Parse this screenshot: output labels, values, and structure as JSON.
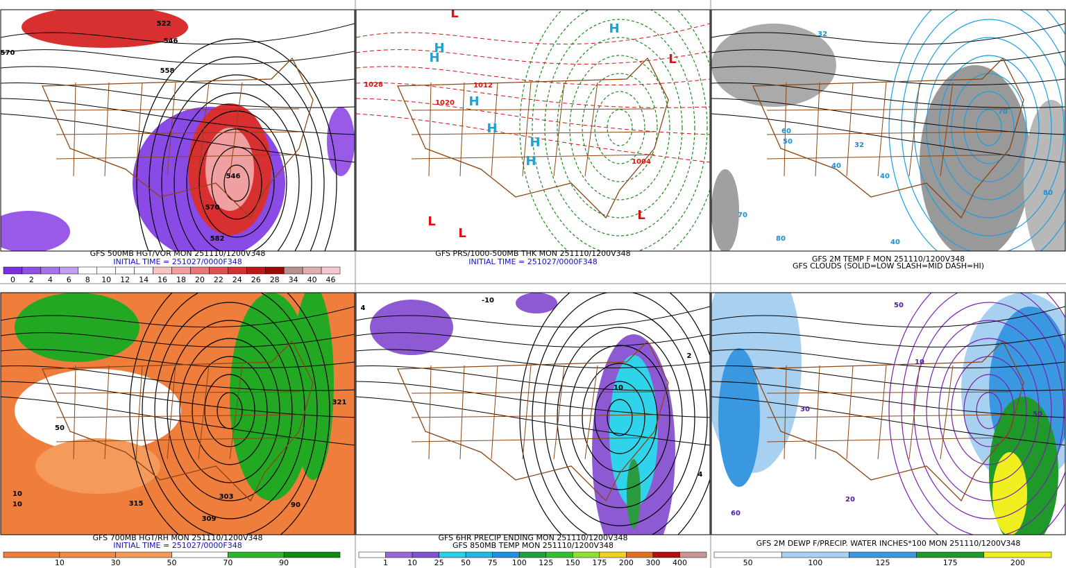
{
  "panels": [
    {
      "captions": [
        "GFS 500MB HGT/VOR MON 251110/1200V348",
        "INITIAL TIME = 251027/0000F348"
      ],
      "map_labels": [
        "570",
        "558",
        "546",
        "546",
        "570",
        "582",
        "522"
      ],
      "colorbar": {
        "colors": [
          "#7b2fe0",
          "#9050e6",
          "#a673ea",
          "#c29ef0",
          "#ffffff",
          "#ffffff",
          "#ffffff",
          "#ffffff",
          "#f7c4c4",
          "#f0a0a0",
          "#e87878",
          "#e05050",
          "#d83030",
          "#c01818",
          "#a00808",
          "#b89090",
          "#e0b0b0",
          "#f4c8d0"
        ],
        "labels": [
          "0",
          "2",
          "4",
          "6",
          "8",
          "10",
          "12",
          "14",
          "16",
          "18",
          "20",
          "22",
          "24",
          "26",
          "28",
          "34",
          "40",
          "46"
        ]
      }
    },
    {
      "captions": [
        "GFS PRS/1000-500MB THK MON 251110/1200V348",
        "INITIAL TIME = 251027/0000F348"
      ],
      "map_labels": [
        "H",
        "H",
        "H",
        "H",
        "H",
        "H",
        "H",
        "L",
        "L",
        "L",
        "L",
        "L",
        "1028",
        "1020",
        "1012",
        "1004"
      ],
      "colorbar": null
    },
    {
      "captions": [
        "GFS 2M TEMP F MON 251110/1200V348",
        "GFS CLOUDS (SOLID=LOW SLASH=MID DASH=HI)"
      ],
      "map_labels": [
        "32",
        "32",
        "40",
        "40",
        "40",
        "50",
        "60",
        "70",
        "70",
        "80",
        "80"
      ],
      "colorbar": null
    },
    {
      "captions": [
        "GFS 700MB HGT/RH MON 251110/1200V348",
        "INITIAL TIME = 251027/0000F348"
      ],
      "map_labels": [
        "309",
        "303",
        "315",
        "321",
        "50",
        "10",
        "10",
        "90"
      ],
      "colorbar": {
        "colors": [
          "#ef7d3c",
          "#f18a46",
          "#f49a5a",
          "#ffffff",
          "#2fb52f",
          "#138a13"
        ],
        "labels": [
          "10",
          "30",
          "50",
          "70",
          "90"
        ]
      }
    },
    {
      "captions": [
        "GFS 6HR PRECIP ENDING MON 251110/1200V348",
        "GFS 850MB TEMP MON 251110/1200V348"
      ],
      "map_labels": [
        "4",
        "4",
        "2",
        "-10",
        "10"
      ],
      "colorbar": {
        "colors": [
          "#ffffff",
          "#9a66d8",
          "#7e54d0",
          "#29d0e8",
          "#20b8e0",
          "#2090e0",
          "#20a040",
          "#30c030",
          "#90e030",
          "#f0d020",
          "#e07020",
          "#b01010",
          "#c89898"
        ],
        "labels": [
          "1",
          "10",
          "25",
          "50",
          "75",
          "100",
          "125",
          "150",
          "175",
          "200",
          "300",
          "400"
        ]
      }
    },
    {
      "captions": [
        "GFS 2M DEWP F/PRECIP. WATER INCHES*100 MON 251110/1200V348"
      ],
      "map_labels": [
        "50",
        "50",
        "30",
        "20",
        "10",
        "60"
      ],
      "colorbar": {
        "colors": [
          "#ffffff",
          "#a8d0f0",
          "#3a98e0",
          "#1f9a2a",
          "#f0f020"
        ],
        "labels": [
          "50",
          "100",
          "125",
          "175",
          "200"
        ]
      }
    }
  ]
}
